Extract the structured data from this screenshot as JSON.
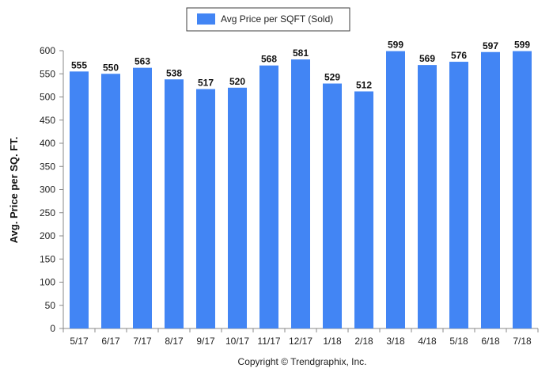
{
  "chart_data": {
    "type": "bar",
    "categories": [
      "5/17",
      "6/17",
      "7/17",
      "8/17",
      "9/17",
      "10/17",
      "11/17",
      "12/17",
      "1/18",
      "2/18",
      "3/18",
      "4/18",
      "5/18",
      "6/18",
      "7/18"
    ],
    "series": [
      {
        "name": "Avg Price per SQFT (Sold)",
        "values": [
          555,
          550,
          563,
          538,
          517,
          520,
          568,
          581,
          529,
          512,
          599,
          569,
          576,
          597,
          599
        ]
      }
    ],
    "data_labels": [
      "555",
      "550",
      "563",
      "538",
      "517",
      "520",
      "568",
      "581",
      "529",
      "512",
      "599",
      "569",
      "576",
      "597",
      "599"
    ],
    "yticks": [
      0,
      50,
      100,
      150,
      200,
      250,
      300,
      350,
      400,
      450,
      500,
      550,
      600
    ],
    "ylabel": "Avg. Price per SQ. FT.",
    "xlabel": "",
    "ylim": [
      0,
      600
    ],
    "legend_position": "top-center",
    "colors": {
      "bar": "#4285f4",
      "axis": "#888888",
      "legend_border": "#3d3d3d"
    }
  },
  "footer": {
    "copyright": "Copyright © Trendgraphix, Inc."
  }
}
